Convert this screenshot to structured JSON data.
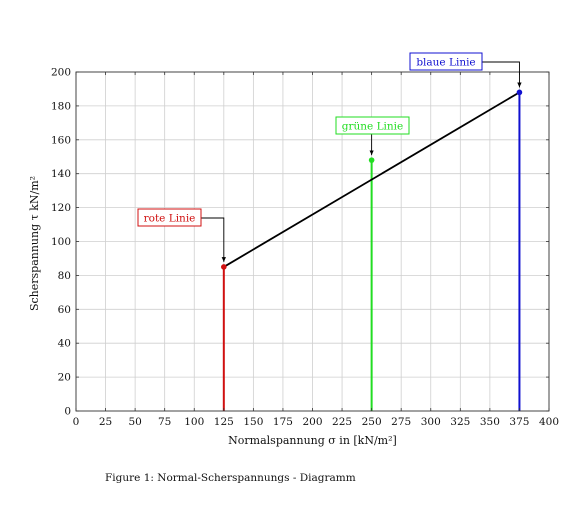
{
  "caption": "Figure 1: Normal-Scherspannungs - Diagramm",
  "chart_data": {
    "type": "line",
    "xlabel": "Normalspannung σ in [kN/m²]",
    "ylabel": "Scherspannung τ kN/m²",
    "xlim": [
      0,
      400
    ],
    "ylim": [
      0,
      200
    ],
    "x_ticks": [
      0,
      25,
      50,
      75,
      100,
      125,
      150,
      175,
      200,
      225,
      250,
      275,
      300,
      325,
      350,
      375,
      400
    ],
    "y_ticks": [
      0,
      20,
      40,
      60,
      80,
      100,
      120,
      140,
      160,
      180,
      200
    ],
    "grid": true,
    "failure_line": {
      "points": [
        [
          125,
          85
        ],
        [
          375,
          188
        ]
      ],
      "color": "#000000"
    },
    "vertical_lines": [
      {
        "x": 125,
        "y": 85,
        "color": "#d01010",
        "label": "rote Linie"
      },
      {
        "x": 250,
        "y": 148,
        "color": "#22dd22",
        "label": "grüne Linie"
      },
      {
        "x": 375,
        "y": 188,
        "color": "#1010d0",
        "label": "blaue Linie"
      }
    ]
  }
}
